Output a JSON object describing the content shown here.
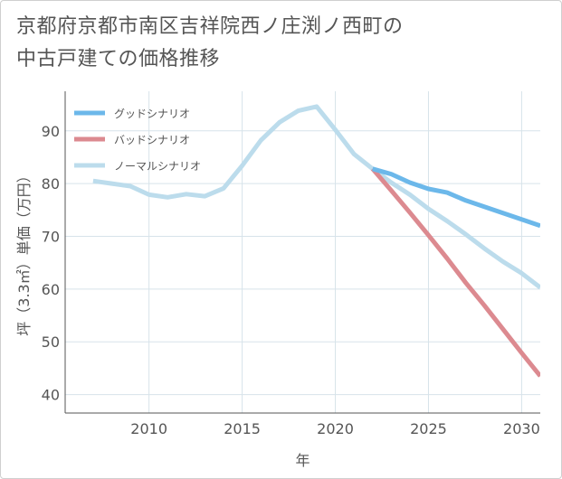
{
  "title_line1": "京都府京都市南区吉祥院西ノ庄渕ノ西町の",
  "title_line2": "中古戸建ての価格推移",
  "chart_data": {
    "type": "line",
    "xlabel": "年",
    "ylabel": "坪（3.3㎡）単価（万円）",
    "xlim": [
      2005.5,
      2031
    ],
    "ylim": [
      36.5,
      97.5
    ],
    "xticks": [
      2010,
      2015,
      2020,
      2025,
      2030
    ],
    "yticks": [
      40,
      50,
      60,
      70,
      80,
      90
    ],
    "grid": true,
    "legend_position": "top-left",
    "series": [
      {
        "name": "グッドシナリオ",
        "color": "#6cb8ea",
        "x": [
          2022,
          2023,
          2024,
          2025,
          2026,
          2027,
          2028,
          2029,
          2030,
          2031
        ],
        "y": [
          82.8,
          81.8,
          80.2,
          79.0,
          78.3,
          76.8,
          75.6,
          74.4,
          73.2,
          72.0
        ]
      },
      {
        "name": "バッドシナリオ",
        "color": "#dc8a90",
        "x": [
          2022,
          2023,
          2024,
          2025,
          2026,
          2027,
          2028,
          2029,
          2030,
          2031
        ],
        "y": [
          82.8,
          78.7,
          74.5,
          70.2,
          65.8,
          61.2,
          56.9,
          52.4,
          47.9,
          43.5
        ]
      },
      {
        "name": "ノーマルシナリオ",
        "color": "#bcdcec",
        "x": [
          2007,
          2008,
          2009,
          2010,
          2011,
          2012,
          2013,
          2014,
          2015,
          2016,
          2017,
          2018,
          2019,
          2020,
          2021,
          2022,
          2023,
          2024,
          2025,
          2026,
          2027,
          2028,
          2029,
          2030,
          2031
        ],
        "y": [
          80.5,
          80.0,
          79.5,
          77.9,
          77.4,
          78.0,
          77.6,
          79.1,
          83.4,
          88.2,
          91.6,
          93.8,
          94.6,
          90.2,
          85.6,
          82.8,
          80.2,
          77.9,
          75.2,
          72.9,
          70.4,
          67.7,
          65.2,
          63.0,
          60.3
        ]
      }
    ]
  }
}
